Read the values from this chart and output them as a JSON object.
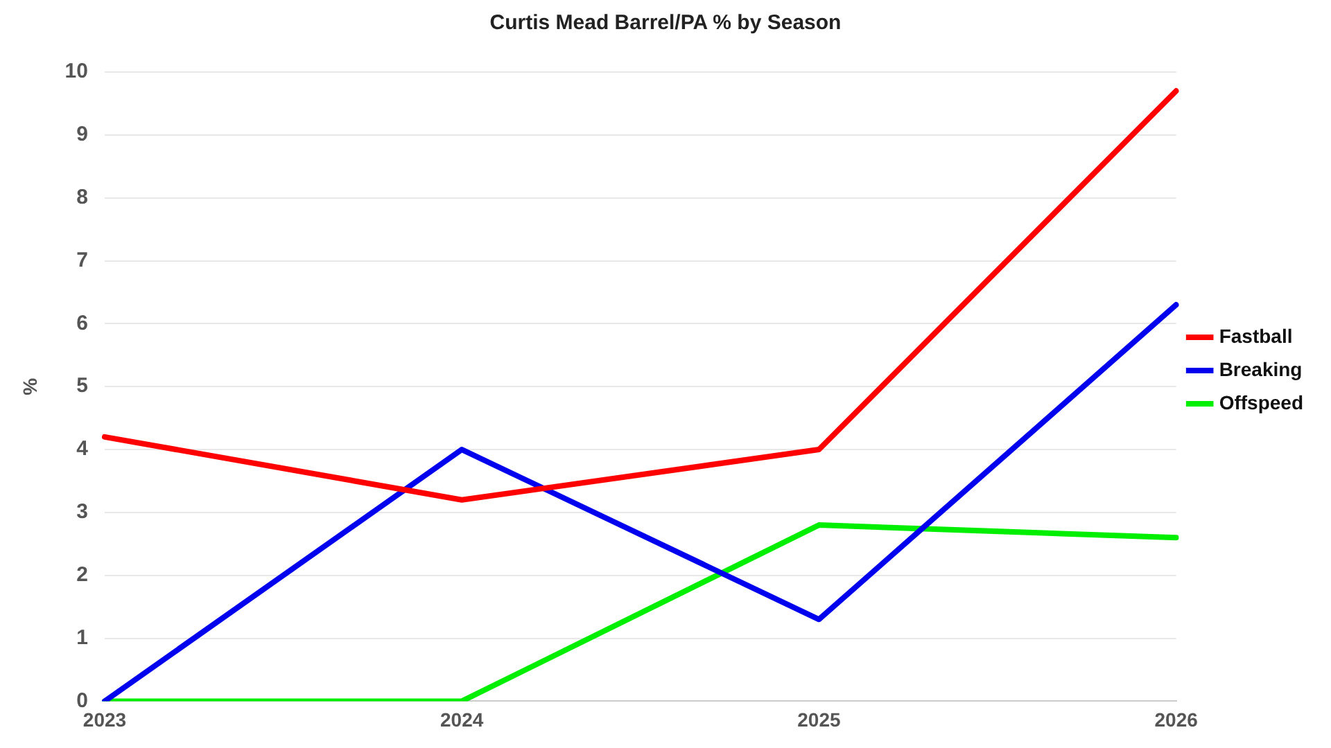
{
  "chart_data": {
    "type": "line",
    "title": "Curtis Mead Barrel/PA % by Season",
    "ylabel": "%",
    "categories": [
      "2023",
      "2024",
      "2025",
      "2026"
    ],
    "series": [
      {
        "name": "Fastball",
        "color": "#ff0000",
        "values": [
          4.2,
          3.2,
          4.0,
          9.7
        ]
      },
      {
        "name": "Breaking",
        "color": "#0000ee",
        "values": [
          0,
          4.0,
          1.3,
          6.3
        ]
      },
      {
        "name": "Offspeed",
        "color": "#00ee00",
        "values": [
          0,
          0,
          2.8,
          2.6
        ]
      }
    ],
    "ylim": [
      0,
      10
    ],
    "yticks": [
      0,
      1,
      2,
      3,
      4,
      5,
      6,
      7,
      8,
      9,
      10
    ],
    "grid": "y",
    "legend": "right",
    "marker": "none",
    "line_style": "solid"
  }
}
